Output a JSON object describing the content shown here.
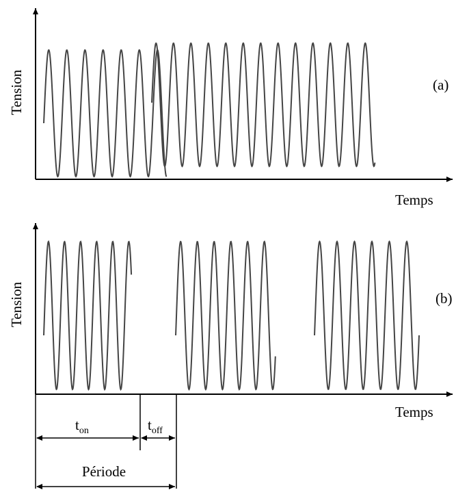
{
  "panel_a": {
    "y_label": "Tension",
    "x_label": "Temps",
    "tag": "(a)"
  },
  "panel_b": {
    "y_label": "Tension",
    "x_label": "Temps",
    "tag": "(b)",
    "t_on": {
      "base": "t",
      "sub": "on"
    },
    "t_off": {
      "base": "t",
      "sub": "off"
    },
    "periode": "Période"
  }
}
